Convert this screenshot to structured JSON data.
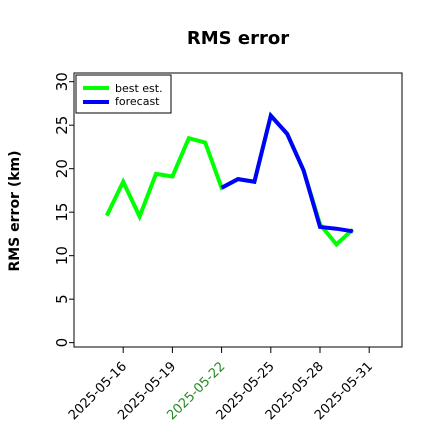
{
  "chart_data": {
    "type": "line",
    "title": "RMS error",
    "ylabel": "RMS error (km)",
    "xlabel": "",
    "ylim": [
      -0.5,
      31
    ],
    "yticks": [
      0,
      5,
      10,
      15,
      20,
      25,
      30
    ],
    "xlim": [
      "2025-05-13",
      "2025-06-02"
    ],
    "xticks": [
      "2025-05-16",
      "2025-05-19",
      "2025-05-22",
      "2025-05-25",
      "2025-05-28",
      "2025-05-31"
    ],
    "highlighted_tick": "2025-05-22",
    "grid": false,
    "legend_position": "top-left",
    "series": [
      {
        "name": "best est.",
        "color": "#00ff00",
        "x": [
          "2025-05-15",
          "2025-05-16",
          "2025-05-17",
          "2025-05-18",
          "2025-05-19",
          "2025-05-20",
          "2025-05-21",
          "2025-05-22",
          "2025-05-23",
          "2025-05-24",
          "2025-05-25",
          "2025-05-26",
          "2025-05-27",
          "2025-05-28",
          "2025-05-29",
          "2025-05-30"
        ],
        "values": [
          14.6,
          18.5,
          14.5,
          19.4,
          19.1,
          23.5,
          23.0,
          17.8,
          18.8,
          18.5,
          26.1,
          24.0,
          19.8,
          13.6,
          11.3,
          13.0
        ]
      },
      {
        "name": "forecast",
        "color": "#0000ff",
        "x": [
          "2025-05-22",
          "2025-05-23",
          "2025-05-24",
          "2025-05-25",
          "2025-05-26",
          "2025-05-27",
          "2025-05-28",
          "2025-05-29",
          "2025-05-30"
        ],
        "values": [
          17.8,
          18.8,
          18.5,
          26.1,
          24.0,
          19.8,
          13.3,
          13.1,
          12.8
        ]
      }
    ]
  }
}
